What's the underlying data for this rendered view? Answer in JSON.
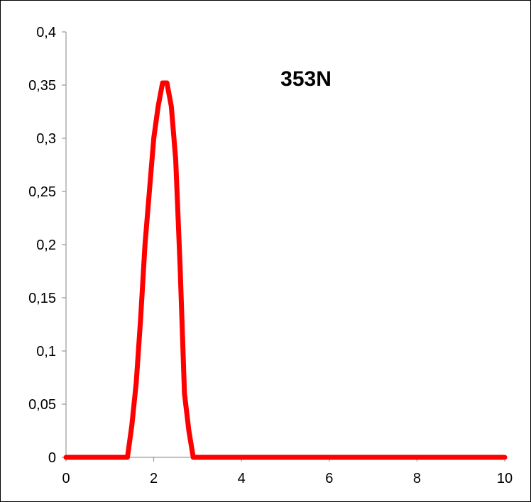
{
  "chart_data": {
    "type": "line",
    "title": "353N",
    "xlabel": "",
    "ylabel": "",
    "xlim": [
      0,
      10
    ],
    "ylim": [
      0,
      0.4
    ],
    "x_ticks": [
      0,
      2,
      4,
      6,
      8,
      10
    ],
    "x_tick_labels": [
      "0",
      "2",
      "4",
      "6",
      "8",
      "10"
    ],
    "y_ticks": [
      0,
      0.05,
      0.1,
      0.15,
      0.2,
      0.25,
      0.3,
      0.35,
      0.4
    ],
    "y_tick_labels": [
      "0",
      "0,05",
      "0,1",
      "0,15",
      "0,2",
      "0,25",
      "0,3",
      "0,35",
      "0,4"
    ],
    "grid": false,
    "legend": "none",
    "series": [
      {
        "color": "#ff0000",
        "x": [
          0,
          1.4,
          1.5,
          1.6,
          1.7,
          1.8,
          1.9,
          2.0,
          2.1,
          2.2,
          2.3,
          2.4,
          2.5,
          2.6,
          2.7,
          2.8,
          2.9,
          3.0,
          4,
          5,
          6,
          7,
          8,
          9,
          10
        ],
        "y": [
          0,
          0,
          0.03,
          0.07,
          0.13,
          0.2,
          0.25,
          0.3,
          0.33,
          0.352,
          0.352,
          0.33,
          0.28,
          0.18,
          0.06,
          0.025,
          0,
          0,
          0,
          0,
          0,
          0,
          0,
          0,
          0
        ]
      }
    ]
  }
}
